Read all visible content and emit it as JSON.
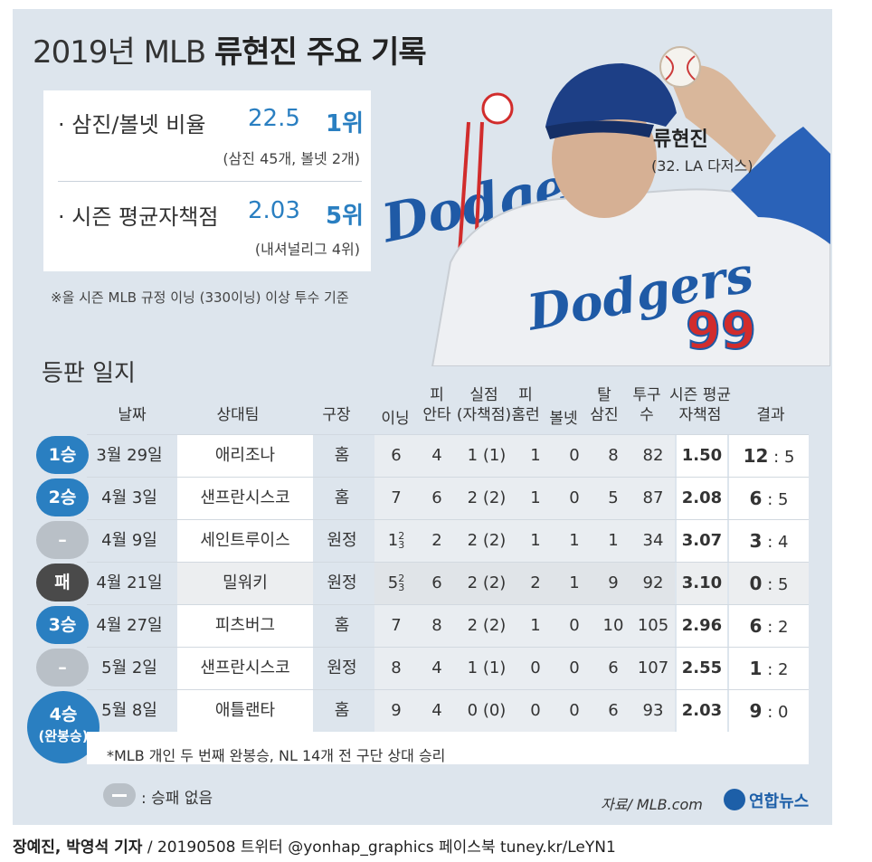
{
  "title": {
    "light": "2019년 MLB",
    "bold": "류현진 주요 기록"
  },
  "stats": [
    {
      "label": "· 삼진/볼넷 비율",
      "value": "22.5",
      "rank": "1위",
      "sub": "(삼진 45개, 볼넷 2개)"
    },
    {
      "label": "· 시즌 평균자책점",
      "value": "2.03",
      "rank": "5위",
      "sub": "(내셔널리그 4위)"
    }
  ],
  "note": "※올 시즌 MLB 규정 이닝 (330이닝) 이상 투수 기준",
  "player": {
    "name": "류현진",
    "info": "(32. LA 다저스)",
    "logo_text": "Dodgers",
    "jersey_text": "Dodgers",
    "number": "99"
  },
  "section_title": "등판 일지",
  "headers": {
    "date": "날짜",
    "opponent": "상대팀",
    "venue": "구장",
    "innings": "이닝",
    "hits_1": "피",
    "hits_2": "안타",
    "runs_1": "실점",
    "runs_2": "(자책점)",
    "hr_1": "피",
    "hr_2": "홈런",
    "bb": "볼넷",
    "so_1": "탈",
    "so_2": "삼진",
    "pitches_1": "투구",
    "pitches_2": "수",
    "era_1": "시즌 평균",
    "era_2": "자책점",
    "result": "결과"
  },
  "chart_data": {
    "type": "table",
    "columns": [
      "날짜",
      "상대팀",
      "구장",
      "이닝",
      "피안타",
      "실점(자책점)",
      "피홈런",
      "볼넷",
      "탈삼진",
      "투구수",
      "시즌 평균자책점",
      "결과"
    ],
    "rows": [
      {
        "badge": "1승",
        "badge_type": "win",
        "date": "3월 29일",
        "opponent": "애리조나",
        "venue": "홈",
        "innings": "6",
        "innings_frac": "",
        "hits": "4",
        "runs": "1 (1)",
        "hr": "1",
        "bb": "0",
        "so": "8",
        "pitches": "82",
        "era": "1.50",
        "score_us": "12",
        "score_sep": ":",
        "score_them": "5"
      },
      {
        "badge": "2승",
        "badge_type": "win",
        "date": "4월 3일",
        "opponent": "샌프란시스코",
        "venue": "홈",
        "innings": "7",
        "innings_frac": "",
        "hits": "6",
        "runs": "2 (2)",
        "hr": "1",
        "bb": "0",
        "so": "5",
        "pitches": "87",
        "era": "2.08",
        "score_us": "6",
        "score_sep": ":",
        "score_them": "5"
      },
      {
        "badge": "–",
        "badge_type": "none",
        "date": "4월 9일",
        "opponent": "세인트루이스",
        "venue": "원정",
        "innings": "1",
        "innings_frac": "2/3",
        "hits": "2",
        "runs": "2 (2)",
        "hr": "1",
        "bb": "1",
        "so": "1",
        "pitches": "34",
        "era": "3.07",
        "score_us": "3",
        "score_sep": ":",
        "score_them": "4"
      },
      {
        "badge": "패",
        "badge_type": "loss",
        "date": "4월 21일",
        "opponent": "밀워키",
        "venue": "원정",
        "innings": "5",
        "innings_frac": "2/3",
        "hits": "6",
        "runs": "2 (2)",
        "hr": "2",
        "bb": "1",
        "so": "9",
        "pitches": "92",
        "era": "3.10",
        "score_us": "0",
        "score_sep": ":",
        "score_them": "5"
      },
      {
        "badge": "3승",
        "badge_type": "win",
        "date": "4월 27일",
        "opponent": "피츠버그",
        "venue": "홈",
        "innings": "7",
        "innings_frac": "",
        "hits": "8",
        "runs": "2 (2)",
        "hr": "1",
        "bb": "0",
        "so": "10",
        "pitches": "105",
        "era": "2.96",
        "score_us": "6",
        "score_sep": ":",
        "score_them": "2"
      },
      {
        "badge": "–",
        "badge_type": "none",
        "date": "5월 2일",
        "opponent": "샌프란시스코",
        "venue": "원정",
        "innings": "8",
        "innings_frac": "",
        "hits": "4",
        "runs": "1 (1)",
        "hr": "0",
        "bb": "0",
        "so": "6",
        "pitches": "107",
        "era": "2.55",
        "score_us": "1",
        "score_sep": ":",
        "score_them": "2"
      },
      {
        "badge": "4승",
        "badge_sub": "(완봉승)",
        "badge_type": "win",
        "date": "5월 8일",
        "opponent": "애틀랜타",
        "venue": "홈",
        "innings": "9",
        "innings_frac": "",
        "hits": "4",
        "runs": "0 (0)",
        "hr": "0",
        "bb": "0",
        "so": "6",
        "pitches": "93",
        "era": "2.03",
        "score_us": "9",
        "score_sep": ":",
        "score_them": "0"
      }
    ]
  },
  "footnote": "*MLB 개인 두 번째 완봉승, NL 14개 전 구단 상대 승리",
  "legend": ": 승패 없음",
  "source": "자료/ MLB.com",
  "logo": "연합뉴스",
  "credit": {
    "authors": "장예진, 박영석 기자",
    "rest": " / 20190508 트위터 @yonhap_graphics  페이스북 tuney.kr/LeYN1"
  },
  "colors": {
    "win": "#2a7fc1",
    "loss": "#4a4a4a",
    "none": "#b9c0c7",
    "accent": "#2a7fc1",
    "panel": "#dde5ed"
  }
}
